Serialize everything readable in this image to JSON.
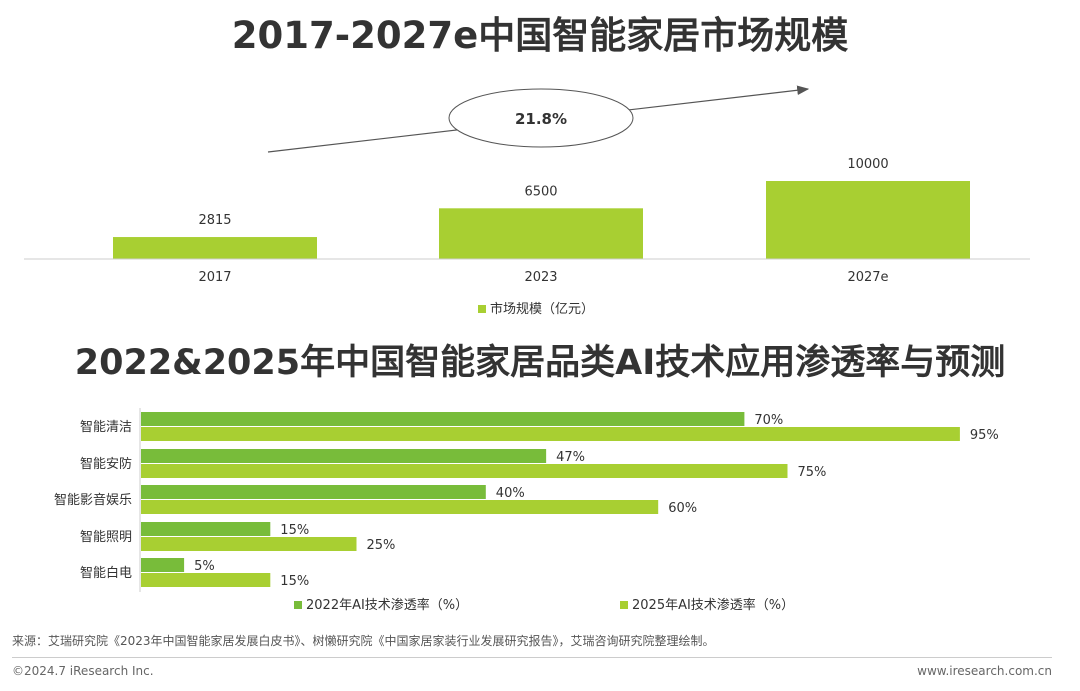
{
  "chart_data": [
    {
      "type": "bar",
      "title": "2017-2027e中国智能家居市场规模",
      "categories": [
        "2017",
        "2023",
        "2027e"
      ],
      "series": [
        {
          "name": "市场规模（亿元）",
          "values": [
            2815,
            6500,
            10000
          ]
        }
      ],
      "value_labels": [
        "2815",
        "6500",
        "10000"
      ],
      "annotation": "21.8%",
      "ylim": [
        0,
        10000
      ],
      "color": "#a8cf32",
      "legend": "bottom",
      "grid": false
    },
    {
      "type": "bar",
      "orientation": "horizontal",
      "title": "2022&2025年中国智能家居品类AI技术应用渗透率与预测",
      "categories": [
        "智能清洁",
        "智能安防",
        "智能影音娱乐",
        "智能照明",
        "智能白电"
      ],
      "series": [
        {
          "name": "2022年AI技术渗透率（%）",
          "values": [
            70,
            47,
            40,
            15,
            5
          ],
          "labels": [
            "70%",
            "47%",
            "40%",
            "15%",
            "5%"
          ],
          "color": "#78bc3a"
        },
        {
          "name": "2025年AI技术渗透率（%）",
          "values": [
            95,
            75,
            60,
            25,
            15
          ],
          "labels": [
            "95%",
            "75%",
            "60%",
            "25%",
            "15%"
          ],
          "color": "#a8cf32"
        }
      ],
      "xlim": [
        0,
        100
      ],
      "legend": "bottom",
      "grid": false
    }
  ],
  "source_note": "来源：艾瑞研究院《2023年中国智能家居发展白皮书》、树懒研究院《中国家居家装行业发展研究报告》，艾瑞咨询研究院整理绘制。",
  "footer": {
    "copyright": "©2024.7 iResearch Inc.",
    "website": "www.iresearch.com.cn"
  }
}
